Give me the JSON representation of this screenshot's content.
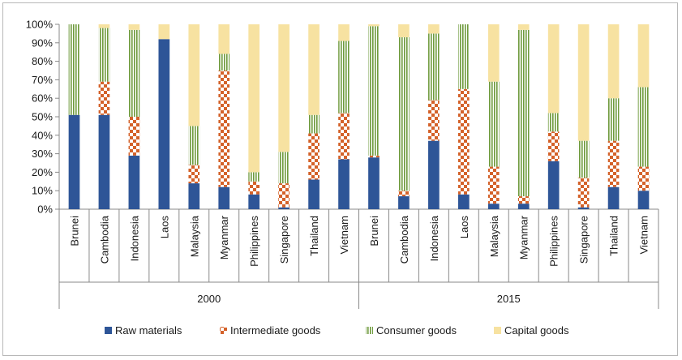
{
  "chart_data": {
    "type": "bar",
    "stacked": true,
    "y_unit": "percent",
    "ylim": [
      0,
      100
    ],
    "yticks": [
      0,
      10,
      20,
      30,
      40,
      50,
      60,
      70,
      80,
      90,
      100
    ],
    "ytick_labels": [
      "0%",
      "10%",
      "20%",
      "30%",
      "40%",
      "50%",
      "60%",
      "70%",
      "80%",
      "90%",
      "100%"
    ],
    "groups": [
      {
        "label": "2000",
        "categories": [
          "Brunei",
          "Cambodia",
          "Indonesia",
          "Laos",
          "Malaysia",
          "Myanmar",
          "Philippines",
          "Singapore",
          "Thailand",
          "Vietnam"
        ]
      },
      {
        "label": "2015",
        "categories": [
          "Brunei",
          "Cambodia",
          "Indonesia",
          "Laos",
          "Malaysia",
          "Myanmar",
          "Philippines",
          "Singapore",
          "Thailand",
          "Vietnam"
        ]
      }
    ],
    "series": [
      {
        "name": "Raw materials",
        "color": "#2e5597",
        "pattern": "solid",
        "values": [
          51,
          51,
          29,
          92,
          14,
          12,
          8,
          1,
          16,
          27,
          28,
          7,
          37,
          8,
          3,
          3,
          26,
          1,
          12,
          10
        ]
      },
      {
        "name": "Intermediate goods",
        "color": "#d4622a",
        "pattern": "checker",
        "values": [
          0,
          18,
          21,
          0,
          10,
          63,
          7,
          13,
          25,
          25,
          1,
          3,
          22,
          57,
          20,
          4,
          16,
          16,
          25,
          13
        ]
      },
      {
        "name": "Consumer goods",
        "color": "#6e9a3c",
        "pattern": "vertical-stripes",
        "values": [
          49,
          29,
          47,
          0,
          21,
          9,
          5,
          17,
          10,
          39,
          70,
          83,
          36,
          35,
          46,
          90,
          10,
          20,
          23,
          43
        ]
      },
      {
        "name": "Capital goods",
        "color": "#f7e2a1",
        "pattern": "solid",
        "values": [
          0,
          2,
          3,
          8,
          55,
          16,
          80,
          69,
          49,
          9,
          1,
          7,
          5,
          0,
          31,
          3,
          48,
          63,
          40,
          34
        ]
      }
    ],
    "legend_position": "bottom",
    "grid": false
  }
}
